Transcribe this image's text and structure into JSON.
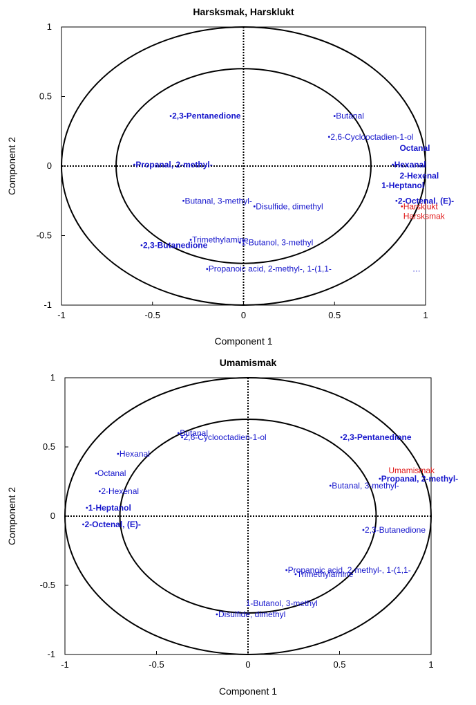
{
  "chart_data": [
    {
      "type": "scatter",
      "title": "Harsksmak, Harsklukt",
      "xlabel": "Component 1",
      "ylabel": "Component 2",
      "xlim": [
        -1,
        1
      ],
      "ylim": [
        -1,
        1
      ],
      "xticks": [
        "-1",
        "-0.5",
        "0",
        "0.5",
        "1"
      ],
      "yticks": [
        "1",
        "0.5",
        "0",
        "-0.5",
        "-1"
      ],
      "circles": [
        0.7,
        1.0
      ],
      "zero_lines": "dotted",
      "colors": {
        "x_variables": "#1515cc",
        "y_variables": "#e01818",
        "axes": "#000000"
      },
      "points": [
        {
          "label": "2,3-Pentanedione",
          "x": -0.4,
          "y": 0.36,
          "bold": true,
          "color": "#1515cc"
        },
        {
          "label": "Butanal",
          "x": 0.5,
          "y": 0.36,
          "bold": false,
          "color": "#1515cc"
        },
        {
          "label": "2,6-Cyclooctadien-1-ol",
          "x": 0.47,
          "y": 0.21,
          "bold": false,
          "color": "#1515cc"
        },
        {
          "label": "Octanal",
          "x": 0.85,
          "y": 0.13,
          "bold": true,
          "color": "#1515cc",
          "nomarker": true
        },
        {
          "label": "Propanal, 2-methyl-",
          "x": -0.6,
          "y": 0.01,
          "bold": true,
          "color": "#1515cc"
        },
        {
          "label": "Hexanal",
          "x": 0.82,
          "y": 0.01,
          "bold": true,
          "color": "#1515cc"
        },
        {
          "label": "2-Hexenal",
          "x": 0.85,
          "y": -0.07,
          "bold": true,
          "color": "#1515cc",
          "nomarker": true
        },
        {
          "label": "1-Heptanol",
          "x": 0.75,
          "y": -0.14,
          "bold": true,
          "color": "#1515cc",
          "nomarker": true
        },
        {
          "label": "2-Octenal, (E)-",
          "x": 0.84,
          "y": -0.25,
          "bold": true,
          "color": "#1515cc"
        },
        {
          "label": "Butanal, 3-methyl-",
          "x": -0.33,
          "y": -0.25,
          "bold": false,
          "color": "#1515cc"
        },
        {
          "label": "Disulfide, dimethyl",
          "x": 0.06,
          "y": -0.29,
          "bold": false,
          "color": "#1515cc"
        },
        {
          "label": "Trimethylamine",
          "x": -0.29,
          "y": -0.53,
          "bold": false,
          "color": "#1515cc"
        },
        {
          "label": "1-Butanol, 3-methyl",
          "x": -0.02,
          "y": -0.55,
          "bold": false,
          "color": "#1515cc"
        },
        {
          "label": "2,3-Butanedione",
          "x": -0.56,
          "y": -0.57,
          "bold": true,
          "color": "#1515cc"
        },
        {
          "label": "Propanoic acid, 2-methyl-, 1-(1,1-",
          "x": -0.2,
          "y": -0.74,
          "bold": false,
          "color": "#1515cc"
        },
        {
          "label": "…",
          "x": 0.92,
          "y": -0.74,
          "bold": false,
          "color": "#1515cc",
          "nomarker": true
        },
        {
          "label": "Harsklukt",
          "x": 0.87,
          "y": -0.29,
          "bold": false,
          "color": "#e01818"
        },
        {
          "label": "Harsksmak",
          "x": 0.87,
          "y": -0.36,
          "bold": false,
          "color": "#e01818",
          "nomarker": true
        }
      ]
    },
    {
      "type": "scatter",
      "title": "Umamismak",
      "xlabel": "Component 1",
      "ylabel": "Component 2",
      "xlim": [
        -1,
        1
      ],
      "ylim": [
        -1,
        1
      ],
      "xticks": [
        "-1",
        "-0.5",
        "0",
        "0.5",
        "1"
      ],
      "yticks": [
        "1",
        "0.5",
        "0",
        "-0.5",
        "-1"
      ],
      "circles": [
        0.7,
        1.0
      ],
      "zero_lines": "dotted",
      "colors": {
        "x_variables": "#1515cc",
        "y_variables": "#e01818",
        "axes": "#000000"
      },
      "points": [
        {
          "label": "Butanal",
          "x": -0.38,
          "y": 0.6,
          "bold": false,
          "color": "#1515cc"
        },
        {
          "label": "2,6-Cyclooctadien-1-ol",
          "x": -0.36,
          "y": 0.57,
          "bold": false,
          "color": "#1515cc"
        },
        {
          "label": "2,3-Pentanedione",
          "x": 0.51,
          "y": 0.57,
          "bold": true,
          "color": "#1515cc"
        },
        {
          "label": "Hexanal",
          "x": -0.71,
          "y": 0.45,
          "bold": false,
          "color": "#1515cc"
        },
        {
          "label": "Octanal",
          "x": -0.83,
          "y": 0.31,
          "bold": false,
          "color": "#1515cc"
        },
        {
          "label": "Umamismak",
          "x": 0.76,
          "y": 0.33,
          "bold": false,
          "color": "#e01818",
          "nomarker": true
        },
        {
          "label": "Propanal, 2-methyl-",
          "x": 0.72,
          "y": 0.27,
          "bold": true,
          "color": "#1515cc"
        },
        {
          "label": "2-Hexenal",
          "x": -0.81,
          "y": 0.18,
          "bold": false,
          "color": "#1515cc"
        },
        {
          "label": "Butanal, 3-methyl-",
          "x": 0.45,
          "y": 0.22,
          "bold": false,
          "color": "#1515cc"
        },
        {
          "label": "1-Heptanol",
          "x": -0.88,
          "y": 0.06,
          "bold": true,
          "color": "#1515cc"
        },
        {
          "label": "2-Octenal, (E)-",
          "x": -0.9,
          "y": -0.06,
          "bold": true,
          "color": "#1515cc"
        },
        {
          "label": "2,3-Butanedione",
          "x": 0.63,
          "y": -0.1,
          "bold": false,
          "color": "#1515cc"
        },
        {
          "label": "Propanoic acid, 2-methyl-, 1-(1,1-",
          "x": 0.21,
          "y": -0.39,
          "bold": false,
          "color": "#1515cc"
        },
        {
          "label": "Trimethylamine",
          "x": 0.26,
          "y": -0.42,
          "bold": false,
          "color": "#1515cc"
        },
        {
          "label": "1-Butanol, 3-methyl",
          "x": -0.02,
          "y": -0.63,
          "bold": false,
          "color": "#1515cc",
          "nomarker": true
        },
        {
          "label": "Disulfide, dimethyl",
          "x": -0.17,
          "y": -0.71,
          "bold": false,
          "color": "#1515cc"
        }
      ]
    }
  ]
}
